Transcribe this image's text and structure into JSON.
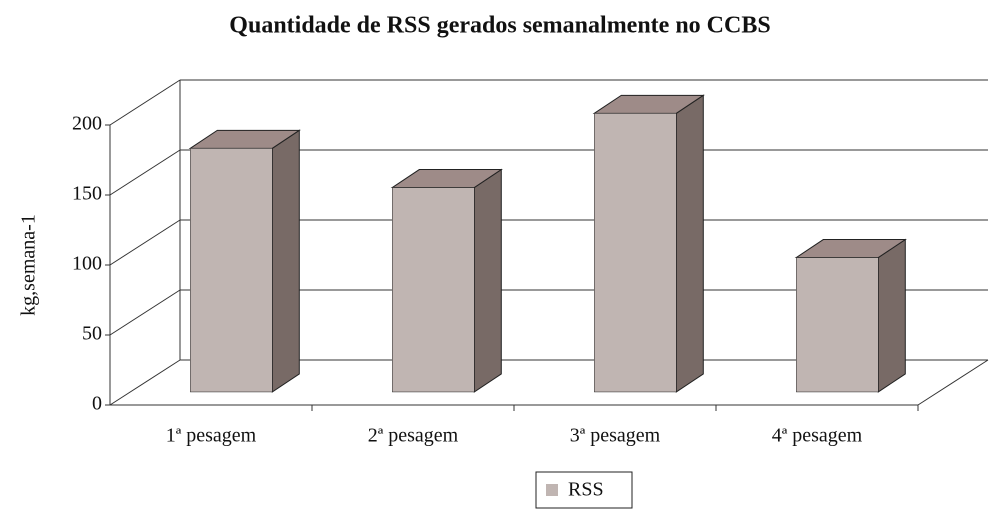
{
  "chart_data": {
    "type": "bar3d",
    "title": "Quantidade de RSS gerados semanalmente no CCBS",
    "y_label": "kg,semana-1",
    "categories": [
      "1ª pesagem",
      "2ª pesagem",
      "3ª pesagem",
      "4ª pesagem"
    ],
    "series": [
      {
        "name": "RSS",
        "color": "#c0b5b2",
        "values": [
          174,
          146,
          199,
          96
        ]
      }
    ],
    "ylim": [
      0,
      200
    ],
    "yticks": [
      0,
      50,
      100,
      150,
      200
    ],
    "grid": true,
    "legend": "bottom"
  }
}
